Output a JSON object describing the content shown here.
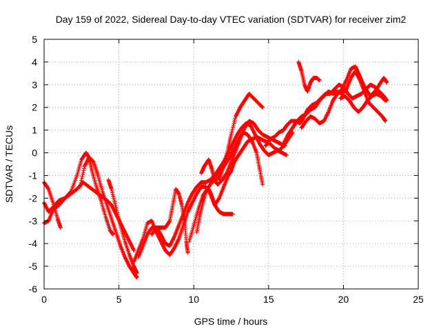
{
  "chart_data": {
    "type": "scatter",
    "title": "Day 159 of 2022, Sidereal Day-to-day VTEC variation (SDTVAR) for receiver zim2",
    "xlabel": "GPS time / hours",
    "ylabel": "SDTVAR / TECUs",
    "xlim": [
      0,
      25
    ],
    "ylim": [
      -6,
      5
    ],
    "xticks": [
      "0",
      "5",
      "10",
      "15",
      "20",
      "25"
    ],
    "yticks": [
      "-6",
      "-5",
      "-4",
      "-3",
      "-2",
      "-1",
      "0",
      "1",
      "2",
      "3",
      "4",
      "5"
    ],
    "grid": true,
    "marker": "+",
    "color": "#ff0000",
    "series": [
      {
        "values": [
          [
            0.0,
            -1.3
          ],
          [
            0.3,
            -1.6
          ],
          [
            0.6,
            -2.2
          ],
          [
            0.9,
            -2.9
          ],
          [
            1.1,
            -3.3
          ]
        ]
      },
      {
        "values": [
          [
            0.0,
            -2.2
          ],
          [
            0.3,
            -2.6
          ],
          [
            0.6,
            -2.4
          ],
          [
            1.0,
            -2.1
          ],
          [
            1.4,
            -2.0
          ],
          [
            1.8,
            -1.8
          ],
          [
            2.2,
            -1.6
          ],
          [
            2.6,
            -1.3
          ],
          [
            3.0,
            -1.5
          ],
          [
            3.4,
            -1.7
          ],
          [
            3.8,
            -1.9
          ],
          [
            4.2,
            -2.1
          ],
          [
            4.5,
            -2.3
          ],
          [
            4.8,
            -2.7
          ],
          [
            5.1,
            -3.1
          ],
          [
            5.4,
            -3.5
          ],
          [
            5.7,
            -3.9
          ],
          [
            6.0,
            -4.3
          ]
        ]
      },
      {
        "values": [
          [
            0.0,
            -3.1
          ],
          [
            0.3,
            -3.0
          ],
          [
            0.6,
            -2.5
          ],
          [
            1.0,
            -2.3
          ],
          [
            1.4,
            -2.0
          ],
          [
            1.8,
            -1.7
          ],
          [
            2.2,
            -1.0
          ],
          [
            2.5,
            -0.3
          ],
          [
            2.8,
            0.0
          ],
          [
            3.0,
            -0.2
          ],
          [
            3.2,
            -0.8
          ],
          [
            3.5,
            -1.5
          ],
          [
            3.8,
            -2.1
          ],
          [
            4.1,
            -2.8
          ],
          [
            4.4,
            -3.4
          ],
          [
            4.6,
            -3.6
          ]
        ]
      },
      {
        "values": [
          [
            2.4,
            -1.5
          ],
          [
            2.7,
            -0.6
          ],
          [
            3.0,
            -0.2
          ],
          [
            3.3,
            -0.4
          ],
          [
            3.6,
            -1.0
          ],
          [
            3.9,
            -1.7
          ],
          [
            4.2,
            -2.3
          ],
          [
            4.5,
            -2.9
          ],
          [
            4.8,
            -3.5
          ],
          [
            5.1,
            -4.1
          ],
          [
            5.4,
            -4.6
          ],
          [
            5.7,
            -5.0
          ],
          [
            6.0,
            -5.3
          ],
          [
            6.2,
            -5.5
          ]
        ]
      },
      {
        "values": [
          [
            4.3,
            -1.2
          ],
          [
            4.5,
            -1.6
          ],
          [
            4.8,
            -2.4
          ],
          [
            5.1,
            -3.2
          ],
          [
            5.4,
            -3.9
          ],
          [
            5.7,
            -4.5
          ],
          [
            6.0,
            -5.0
          ],
          [
            6.2,
            -5.3
          ]
        ]
      },
      {
        "values": [
          [
            6.0,
            -4.8
          ],
          [
            6.3,
            -4.3
          ],
          [
            6.6,
            -3.8
          ],
          [
            6.9,
            -3.1
          ],
          [
            7.2,
            -3.0
          ],
          [
            7.5,
            -3.5
          ],
          [
            7.8,
            -3.9
          ],
          [
            8.1,
            -4.3
          ],
          [
            8.4,
            -4.5
          ],
          [
            8.7,
            -4.2
          ],
          [
            9.0,
            -3.8
          ],
          [
            9.3,
            -3.2
          ],
          [
            9.6,
            -2.6
          ],
          [
            9.9,
            -2.2
          ],
          [
            10.2,
            -1.8
          ],
          [
            10.5,
            -1.5
          ],
          [
            10.8,
            -1.5
          ],
          [
            11.1,
            -1.8
          ],
          [
            11.4,
            -2.3
          ],
          [
            11.7,
            -2.6
          ],
          [
            12.0,
            -2.7
          ],
          [
            12.3,
            -2.7
          ],
          [
            12.6,
            -2.7
          ]
        ]
      },
      {
        "values": [
          [
            6.3,
            -4.6
          ],
          [
            6.6,
            -4.1
          ],
          [
            6.9,
            -3.6
          ],
          [
            7.2,
            -3.3
          ],
          [
            7.5,
            -3.3
          ],
          [
            7.8,
            -3.6
          ],
          [
            8.1,
            -4.0
          ],
          [
            8.4,
            -4.1
          ],
          [
            8.7,
            -3.7
          ],
          [
            9.0,
            -3.2
          ],
          [
            9.3,
            -2.7
          ],
          [
            9.6,
            -2.2
          ],
          [
            9.9,
            -1.8
          ],
          [
            10.2,
            -1.5
          ],
          [
            10.5,
            -1.3
          ],
          [
            10.8,
            -1.3
          ],
          [
            11.1,
            -1.2
          ],
          [
            11.4,
            -1.0
          ],
          [
            11.7,
            -0.7
          ],
          [
            12.0,
            -0.4
          ],
          [
            12.3,
            0.0
          ],
          [
            12.6,
            0.4
          ],
          [
            12.9,
            0.8
          ],
          [
            13.2,
            1.1
          ],
          [
            13.5,
            1.3
          ],
          [
            13.8,
            1.2
          ],
          [
            14.1,
            0.8
          ],
          [
            14.4,
            0.4
          ],
          [
            14.7,
            0.1
          ],
          [
            15.0,
            -0.1
          ],
          [
            15.3,
            0.0
          ],
          [
            15.6,
            0.1
          ],
          [
            15.9,
            0.0
          ],
          [
            16.2,
            -0.1
          ]
        ]
      },
      {
        "values": [
          [
            7.2,
            -3.6
          ],
          [
            7.5,
            -3.3
          ],
          [
            7.8,
            -3.3
          ],
          [
            8.1,
            -3.3
          ],
          [
            8.4,
            -3.0
          ],
          [
            8.6,
            -2.3
          ],
          [
            8.8,
            -1.6
          ],
          [
            9.0,
            -1.8
          ],
          [
            9.2,
            -2.3
          ],
          [
            9.4,
            -3.0
          ],
          [
            9.5,
            -3.9
          ],
          [
            9.6,
            -4.4
          ]
        ]
      },
      {
        "values": [
          [
            9.7,
            -3.9
          ],
          [
            10.0,
            -3.2
          ],
          [
            10.3,
            -2.5
          ],
          [
            10.6,
            -1.9
          ],
          [
            10.9,
            -1.6
          ],
          [
            11.2,
            -1.3
          ],
          [
            11.5,
            -1.2
          ],
          [
            11.8,
            -0.8
          ],
          [
            12.1,
            -0.5
          ],
          [
            12.4,
            -0.2
          ],
          [
            12.7,
            0.2
          ],
          [
            13.0,
            0.6
          ],
          [
            13.3,
            0.9
          ],
          [
            13.6,
            0.8
          ],
          [
            13.9,
            0.5
          ],
          [
            14.2,
            0.0
          ],
          [
            14.4,
            -0.7
          ],
          [
            14.6,
            -1.4
          ]
        ]
      },
      {
        "values": [
          [
            10.2,
            -3.5
          ],
          [
            10.4,
            -2.8
          ],
          [
            10.6,
            -2.2
          ],
          [
            10.8,
            -1.7
          ],
          [
            11.0,
            -1.6
          ],
          [
            11.2,
            -1.9
          ],
          [
            11.4,
            -2.3
          ],
          [
            11.7,
            -2.0
          ],
          [
            12.0,
            -1.5
          ],
          [
            12.3,
            -1.0
          ],
          [
            12.5,
            -0.8
          ],
          [
            12.7,
            -0.4
          ],
          [
            13.0,
            -0.1
          ],
          [
            13.3,
            0.2
          ],
          [
            13.6,
            0.5
          ],
          [
            13.9,
            0.6
          ],
          [
            14.2,
            0.7
          ],
          [
            14.5,
            0.6
          ],
          [
            14.8,
            0.5
          ],
          [
            15.1,
            0.4
          ],
          [
            15.4,
            0.2
          ],
          [
            15.7,
            0.1
          ],
          [
            16.0,
            0.3
          ],
          [
            16.3,
            0.6
          ],
          [
            16.6,
            0.9
          ]
        ]
      },
      {
        "values": [
          [
            10.5,
            -0.9
          ],
          [
            10.7,
            -0.6
          ],
          [
            11.0,
            -0.3
          ],
          [
            11.2,
            -0.7
          ],
          [
            11.4,
            -1.2
          ],
          [
            11.6,
            -1.4
          ],
          [
            11.9,
            -1.2
          ],
          [
            12.2,
            -0.9
          ],
          [
            12.5,
            -0.4
          ],
          [
            12.8,
            0.1
          ],
          [
            13.1,
            0.6
          ],
          [
            13.4,
            1.1
          ],
          [
            13.7,
            1.4
          ],
          [
            14.0,
            1.3
          ],
          [
            14.3,
            1.0
          ],
          [
            14.6,
            0.8
          ],
          [
            14.9,
            0.7
          ],
          [
            15.2,
            0.6
          ],
          [
            15.5,
            0.5
          ],
          [
            15.8,
            0.4
          ],
          [
            16.1,
            0.3
          ]
        ]
      },
      {
        "values": [
          [
            11.7,
            -1.2
          ],
          [
            12.0,
            -0.6
          ],
          [
            12.3,
            0.2
          ],
          [
            12.5,
            0.8
          ],
          [
            12.8,
            1.6
          ],
          [
            13.1,
            2.0
          ],
          [
            13.4,
            2.3
          ],
          [
            13.7,
            2.6
          ],
          [
            14.0,
            2.4
          ],
          [
            14.3,
            2.2
          ],
          [
            14.6,
            2.0
          ]
        ]
      },
      {
        "values": [
          [
            14.8,
            0.3
          ],
          [
            15.1,
            0.6
          ],
          [
            15.4,
            0.7
          ],
          [
            15.7,
            0.9
          ],
          [
            16.0,
            1.0
          ],
          [
            16.2,
            1.2
          ],
          [
            16.5,
            1.4
          ],
          [
            16.8,
            1.4
          ],
          [
            17.1,
            1.3
          ],
          [
            17.3,
            1.5
          ],
          [
            17.6,
            1.9
          ],
          [
            17.9,
            2.1
          ],
          [
            18.2,
            2.2
          ],
          [
            18.5,
            2.4
          ],
          [
            18.8,
            2.6
          ],
          [
            19.1,
            2.6
          ],
          [
            19.4,
            2.8
          ],
          [
            19.7,
            3.0
          ],
          [
            20.0,
            2.9
          ],
          [
            20.3,
            2.6
          ],
          [
            20.6,
            2.4
          ],
          [
            20.9,
            2.5
          ],
          [
            21.2,
            2.6
          ],
          [
            21.5,
            2.8
          ],
          [
            21.8,
            3.0
          ],
          [
            22.1,
            2.9
          ],
          [
            22.4,
            2.7
          ],
          [
            22.7,
            2.5
          ],
          [
            22.9,
            2.3
          ]
        ]
      },
      {
        "values": [
          [
            16.0,
            0.4
          ],
          [
            16.3,
            0.8
          ],
          [
            16.6,
            1.1
          ],
          [
            16.9,
            1.4
          ],
          [
            17.2,
            1.6
          ],
          [
            17.5,
            1.7
          ],
          [
            17.8,
            1.9
          ],
          [
            18.1,
            2.0
          ],
          [
            18.4,
            2.3
          ],
          [
            18.7,
            2.5
          ],
          [
            19.0,
            2.7
          ],
          [
            19.3,
            2.6
          ],
          [
            19.6,
            2.7
          ],
          [
            19.9,
            2.6
          ],
          [
            20.2,
            2.8
          ],
          [
            20.5,
            3.3
          ],
          [
            20.8,
            3.6
          ],
          [
            21.1,
            3.2
          ],
          [
            21.4,
            2.7
          ],
          [
            21.7,
            2.2
          ],
          [
            22.0,
            2.0
          ],
          [
            22.3,
            1.8
          ],
          [
            22.6,
            1.6
          ],
          [
            22.8,
            1.4
          ]
        ]
      },
      {
        "values": [
          [
            17.0,
            4.0
          ],
          [
            17.2,
            3.6
          ],
          [
            17.4,
            3.0
          ],
          [
            17.6,
            2.7
          ],
          [
            17.8,
            3.1
          ],
          [
            18.0,
            3.3
          ],
          [
            18.2,
            3.3
          ],
          [
            18.4,
            3.2
          ]
        ]
      },
      {
        "values": [
          [
            17.2,
            1.1
          ],
          [
            17.5,
            1.4
          ],
          [
            17.8,
            1.6
          ],
          [
            18.1,
            1.5
          ],
          [
            18.4,
            1.3
          ],
          [
            18.7,
            1.4
          ],
          [
            19.0,
            1.8
          ],
          [
            19.3,
            2.3
          ],
          [
            19.6,
            2.6
          ],
          [
            19.9,
            2.8
          ],
          [
            20.2,
            3.2
          ],
          [
            20.5,
            3.7
          ],
          [
            20.8,
            3.8
          ],
          [
            21.0,
            3.5
          ],
          [
            21.2,
            3.2
          ],
          [
            21.5,
            2.8
          ],
          [
            21.8,
            2.5
          ],
          [
            22.1,
            2.7
          ],
          [
            22.4,
            3.0
          ],
          [
            22.7,
            3.3
          ],
          [
            22.9,
            3.1
          ]
        ]
      },
      {
        "values": [
          [
            19.8,
            2.4
          ],
          [
            20.1,
            2.5
          ],
          [
            20.4,
            2.3
          ],
          [
            20.7,
            2.0
          ],
          [
            21.0,
            1.8
          ],
          [
            21.3,
            2.0
          ],
          [
            21.6,
            2.3
          ],
          [
            21.9,
            2.5
          ],
          [
            22.2,
            2.6
          ],
          [
            22.5,
            2.5
          ],
          [
            22.8,
            2.3
          ]
        ]
      }
    ]
  }
}
